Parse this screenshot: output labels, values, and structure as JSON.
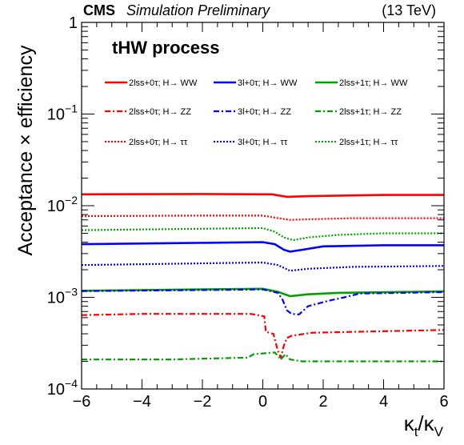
{
  "header": {
    "experiment": "CMS",
    "label": "Simulation Preliminary",
    "energy": "(13 TeV)",
    "process": "tHW process"
  },
  "chart_data": {
    "type": "line",
    "title": "",
    "xlabel_main": "κ",
    "xlabel_sub1": "t",
    "xlabel_slash": "/κ",
    "xlabel_sub2": "V",
    "ylabel": "Acceptance × efficiency",
    "xlim": [
      -6,
      6
    ],
    "ylim": [
      0.0001,
      1
    ],
    "yscale": "log",
    "x_ticks": [
      -6,
      -4,
      -2,
      0,
      2,
      4,
      6
    ],
    "x_tick_labels": [
      "−6",
      "−4",
      "−2",
      "0",
      "2",
      "4",
      "6"
    ],
    "y_ticks": [
      {
        "base": "10",
        "exp": "−4",
        "value": 0.0001
      },
      {
        "base": "10",
        "exp": "−3",
        "value": 0.001
      },
      {
        "base": "10",
        "exp": "−2",
        "value": 0.01
      },
      {
        "base": "10",
        "exp": "−1",
        "value": 0.1
      },
      {
        "base": "1",
        "exp": "",
        "value": 1
      }
    ],
    "grid": false,
    "legend_placement": "top",
    "series": [
      {
        "name": "2lss+0τ; H→ WW",
        "color": "#ff0000",
        "dash": "solid",
        "points": [
          [
            -6,
            0.0133
          ],
          [
            -2,
            0.0134
          ],
          [
            0.3,
            0.0133
          ],
          [
            0.8,
            0.0125
          ],
          [
            1.5,
            0.0127
          ],
          [
            4,
            0.0131
          ],
          [
            6,
            0.0131
          ]
        ]
      },
      {
        "name": "3l+0τ; H→ WW",
        "color": "#0000ff",
        "dash": "solid",
        "points": [
          [
            -6,
            0.0038
          ],
          [
            -3,
            0.0039
          ],
          [
            0,
            0.004
          ],
          [
            0.4,
            0.0038
          ],
          [
            0.7,
            0.0033
          ],
          [
            0.9,
            0.00315
          ],
          [
            1.3,
            0.0033
          ],
          [
            2,
            0.0036
          ],
          [
            4,
            0.0037
          ],
          [
            6,
            0.0037
          ]
        ]
      },
      {
        "name": "2lss+1τ; H→ WW",
        "color": "#00a000",
        "dash": "solid",
        "points": [
          [
            -6,
            0.00118
          ],
          [
            -2,
            0.00122
          ],
          [
            0,
            0.00124
          ],
          [
            0.5,
            0.00115
          ],
          [
            0.9,
            0.00103
          ],
          [
            1.5,
            0.00108
          ],
          [
            2.5,
            0.00112
          ],
          [
            6,
            0.00116
          ]
        ]
      },
      {
        "name": "2lss+0τ; H→ ZZ",
        "color": "#ff0000",
        "dash": "dashdot",
        "points": [
          [
            -6,
            0.00064
          ],
          [
            -4,
            0.00066
          ],
          [
            -2,
            0.00066
          ],
          [
            -0.4,
            0.00066
          ],
          [
            0.05,
            0.00062
          ],
          [
            0.1,
            0.00042
          ],
          [
            0.35,
            0.0004
          ],
          [
            0.5,
            0.00026
          ],
          [
            0.6,
            0.00022
          ],
          [
            0.7,
            0.0003
          ],
          [
            0.8,
            0.00036
          ],
          [
            0.95,
            0.00038
          ],
          [
            1.6,
            0.00041
          ],
          [
            3,
            0.00042
          ],
          [
            6,
            0.00044
          ]
        ]
      },
      {
        "name": "3l+0τ; H→ ZZ",
        "color": "#0000ff",
        "dash": "dashdot",
        "points": [
          [
            -6,
            0.00117
          ],
          [
            -2,
            0.0012
          ],
          [
            0,
            0.00122
          ],
          [
            0.5,
            0.00112
          ],
          [
            0.65,
            0.00095
          ],
          [
            0.8,
            0.00072
          ],
          [
            0.95,
            0.00066
          ],
          [
            1.2,
            0.00065
          ],
          [
            1.5,
            0.0008
          ],
          [
            1.8,
            0.00085
          ],
          [
            2.2,
            0.00092
          ],
          [
            2.7,
            0.001
          ],
          [
            3.2,
            0.0011
          ],
          [
            6,
            0.00114
          ]
        ]
      },
      {
        "name": "2lss+1τ; H→ ZZ",
        "color": "#00a000",
        "dash": "dashdot",
        "points": [
          [
            -6,
            0.00021
          ],
          [
            -3,
            0.00021
          ],
          [
            -0.5,
            0.00022
          ],
          [
            -0.3,
            0.00024
          ],
          [
            0.4,
            0.00025
          ],
          [
            0.6,
            0.00021
          ],
          [
            0.75,
            0.00024
          ],
          [
            0.9,
            0.00021
          ],
          [
            1.3,
            0.0002
          ],
          [
            2,
            0.0002
          ],
          [
            6,
            0.0002
          ]
        ]
      },
      {
        "name": "2lss+0τ; H→ ττ",
        "color": "#ff0000",
        "dash": "dotted",
        "points": [
          [
            -6,
            0.0077
          ],
          [
            -2,
            0.0078
          ],
          [
            0,
            0.0078
          ],
          [
            0.4,
            0.0074
          ],
          [
            0.9,
            0.007
          ],
          [
            1.5,
            0.0071
          ],
          [
            3,
            0.0073
          ],
          [
            6,
            0.0073
          ]
        ]
      },
      {
        "name": "3l+0τ; H→ ττ",
        "color": "#0000ff",
        "dash": "dotted",
        "points": [
          [
            -6,
            0.00225
          ],
          [
            -2,
            0.00235
          ],
          [
            0,
            0.0024
          ],
          [
            0.5,
            0.00225
          ],
          [
            0.9,
            0.00195
          ],
          [
            1.5,
            0.00205
          ],
          [
            3,
            0.00215
          ],
          [
            6,
            0.0022
          ]
        ]
      },
      {
        "name": "2lss+1τ; H→ ττ",
        "color": "#00a000",
        "dash": "dotted",
        "points": [
          [
            -6,
            0.0054
          ],
          [
            -2,
            0.0056
          ],
          [
            0,
            0.0057
          ],
          [
            0.4,
            0.0052
          ],
          [
            0.7,
            0.0045
          ],
          [
            1,
            0.0042
          ],
          [
            1.5,
            0.0045
          ],
          [
            2.5,
            0.0048
          ],
          [
            4,
            0.005
          ],
          [
            6,
            0.005
          ]
        ]
      }
    ]
  }
}
